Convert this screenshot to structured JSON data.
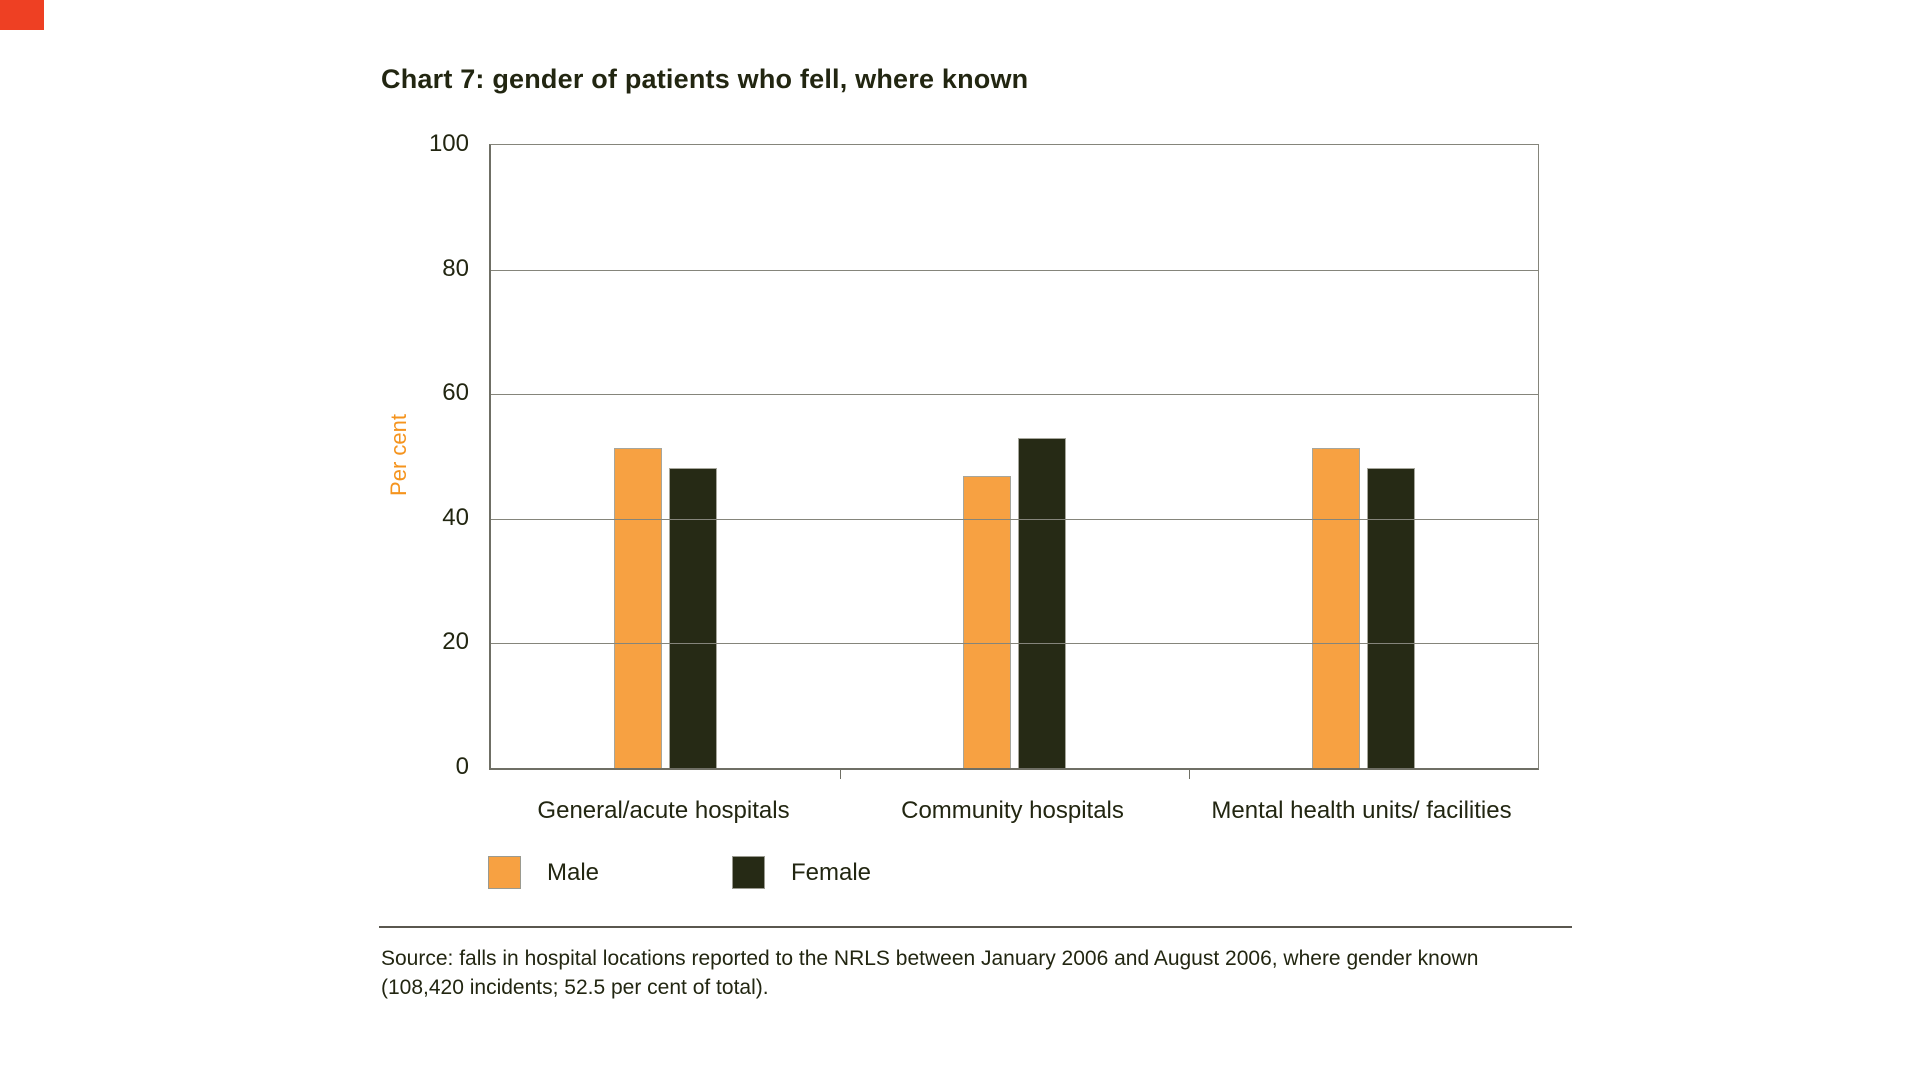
{
  "page": {
    "corner_mark_color": "#EE4023",
    "background_color": "#FFFFFF",
    "text_color": "#222611"
  },
  "chart_data": {
    "type": "bar",
    "title": "Chart 7: gender of patients who fell, where known",
    "xlabel": "",
    "ylabel": "Per cent",
    "ylabel_color": "#F5941E",
    "ylim": [
      0,
      100
    ],
    "yticks": [
      0,
      20,
      40,
      60,
      80,
      100
    ],
    "grid": "horizontal",
    "legend_position": "bottom-left",
    "categories": [
      "General/acute hospitals",
      "Community hospitals",
      "Mental health units/ facilities"
    ],
    "series": [
      {
        "name": "Male",
        "color": "#F7A142",
        "values": [
          51.3,
          46.8,
          51.3
        ]
      },
      {
        "name": "Female",
        "color": "#262A15",
        "values": [
          48.2,
          52.9,
          48.2
        ]
      }
    ]
  },
  "source": {
    "line1": "Source: falls in hospital locations reported to the NRLS between January 2006 and August 2006, where gender known",
    "line2": "(108,420 incidents; 52.5 per cent of total)."
  }
}
